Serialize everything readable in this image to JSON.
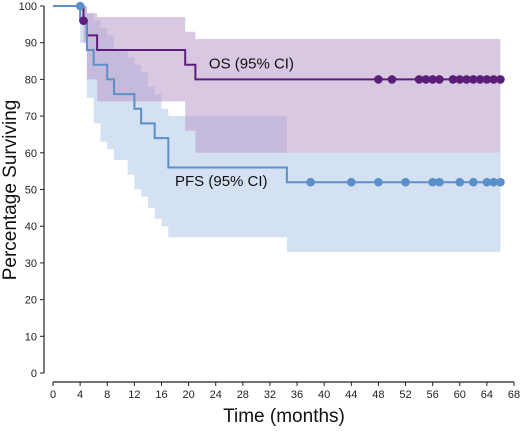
{
  "chart_data": {
    "type": "line",
    "title": "",
    "xlabel": "Time (months)",
    "ylabel": "Percentage Surviving",
    "xlim": [
      0,
      68
    ],
    "ylim": [
      0,
      100
    ],
    "xticks": [
      0,
      4,
      8,
      12,
      16,
      20,
      24,
      28,
      32,
      36,
      40,
      44,
      48,
      52,
      56,
      60,
      64,
      68
    ],
    "yticks": [
      0,
      10,
      20,
      30,
      40,
      50,
      60,
      70,
      80,
      90,
      100
    ],
    "grid": false,
    "legend": "none",
    "series": [
      {
        "name": "OS (95% CI)",
        "color": "#5b1f7a",
        "band_color": "#b89bc8",
        "step_x": [
          0,
          4.5,
          5,
          6.5,
          19.5,
          21,
          66
        ],
        "step_y": [
          100,
          96,
          92,
          88,
          84,
          80,
          80
        ],
        "ci_x": [
          0,
          4.5,
          5,
          6.5,
          19.5,
          21,
          66
        ],
        "ci_upper": [
          100,
          100,
          98,
          97,
          93,
          91,
          91
        ],
        "ci_lower": [
          100,
          90,
          80,
          74,
          66,
          60,
          60
        ],
        "censor_x": [
          4.5,
          48,
          50,
          54,
          55,
          56,
          57,
          59,
          60,
          61,
          62,
          63,
          64,
          65,
          66
        ],
        "censor_y": [
          96,
          80,
          80,
          80,
          80,
          80,
          80,
          80,
          80,
          80,
          80,
          80,
          80,
          80,
          80
        ]
      },
      {
        "name": "PFS (95% CI)",
        "color": "#5b8fc9",
        "band_color": "#aac4e6",
        "step_x": [
          0,
          4,
          5,
          6,
          8,
          9,
          12,
          13,
          15,
          17,
          34.5,
          66
        ],
        "step_y": [
          100,
          96,
          88,
          84,
          80,
          76,
          72,
          68,
          64,
          56,
          52,
          52
        ],
        "ci_x": [
          0,
          4,
          5,
          6,
          7,
          8,
          9,
          11,
          12,
          13,
          14,
          15,
          16,
          17,
          34.5,
          66
        ],
        "ci_upper": [
          100,
          100,
          98,
          96,
          94,
          92,
          88,
          86,
          84,
          82,
          78,
          76,
          72,
          70,
          60,
          59
        ],
        "ci_lower": [
          100,
          90,
          75,
          68,
          63,
          61,
          58,
          54,
          50,
          48,
          45,
          42,
          40,
          37,
          33,
          33
        ],
        "censor_x": [
          4,
          38,
          44,
          48,
          52,
          56,
          57,
          60,
          62,
          64,
          65,
          66
        ],
        "censor_y": [
          100,
          52,
          52,
          52,
          52,
          52,
          52,
          52,
          52,
          52,
          52,
          52
        ]
      }
    ],
    "annotations": [
      {
        "text": "OS (95% CI)",
        "x": 23,
        "y": 83
      },
      {
        "text": "PFS (95% CI)",
        "x": 18,
        "y": 51
      }
    ]
  }
}
